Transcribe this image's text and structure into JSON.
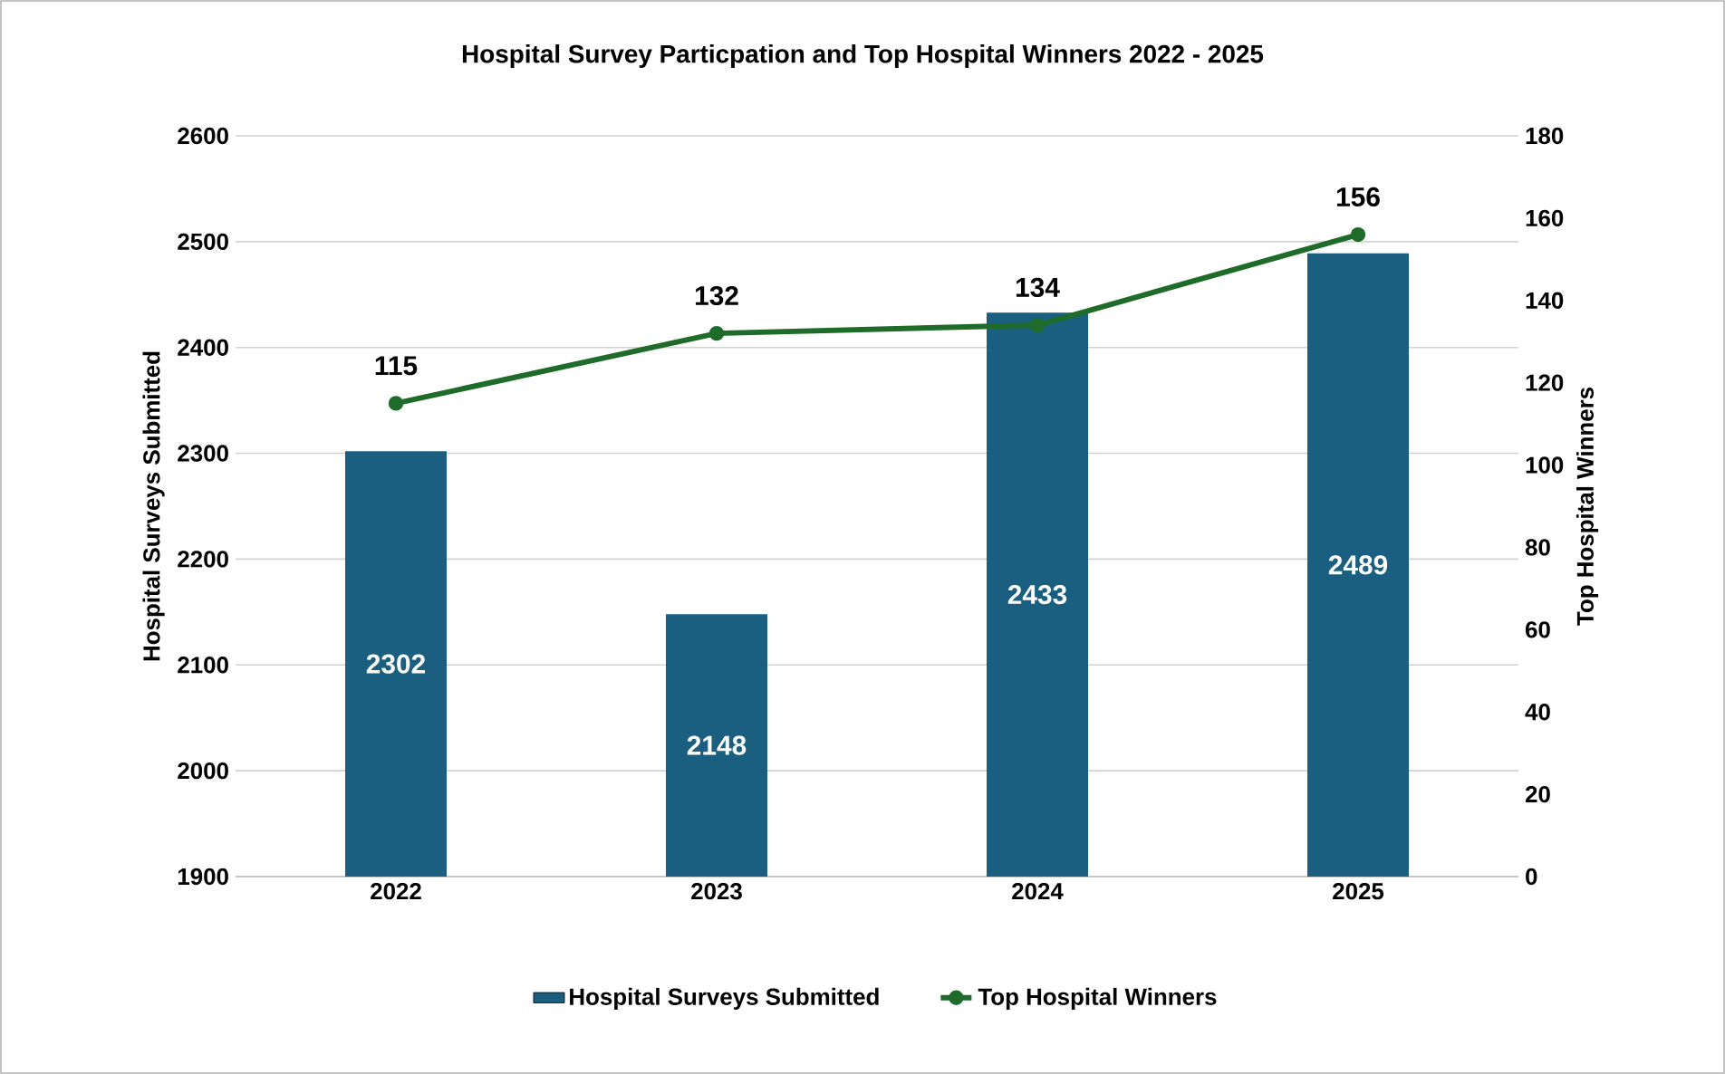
{
  "chart_data": {
    "type": "bar",
    "title": "Hospital Survey Particpation and Top Hospital Winners 2022 - 2025",
    "ylabel": "Hospital Surveys Submitted",
    "y2label": "Top Hospital Winners",
    "categories": [
      "2022",
      "2023",
      "2024",
      "2025"
    ],
    "series": [
      {
        "name": "Hospital Surveys Submitted",
        "color": "#1a5e80",
        "values": [
          2302,
          2148,
          2433,
          2489
        ]
      },
      {
        "name": "Top Hospital Winners",
        "type": "line",
        "axis": "y2",
        "color": "#1e6b2a",
        "marker": "circle",
        "values": [
          115,
          132,
          134,
          156
        ]
      }
    ],
    "ylim": [
      1900,
      2600
    ],
    "yticks": [
      1900,
      2000,
      2100,
      2200,
      2300,
      2400,
      2500,
      2600
    ],
    "y2lim": [
      0,
      180
    ],
    "y2ticks": [
      0,
      20,
      40,
      60,
      80,
      100,
      120,
      140,
      160,
      180
    ],
    "grid": "y",
    "legend": "bottom",
    "data_labels": true
  }
}
